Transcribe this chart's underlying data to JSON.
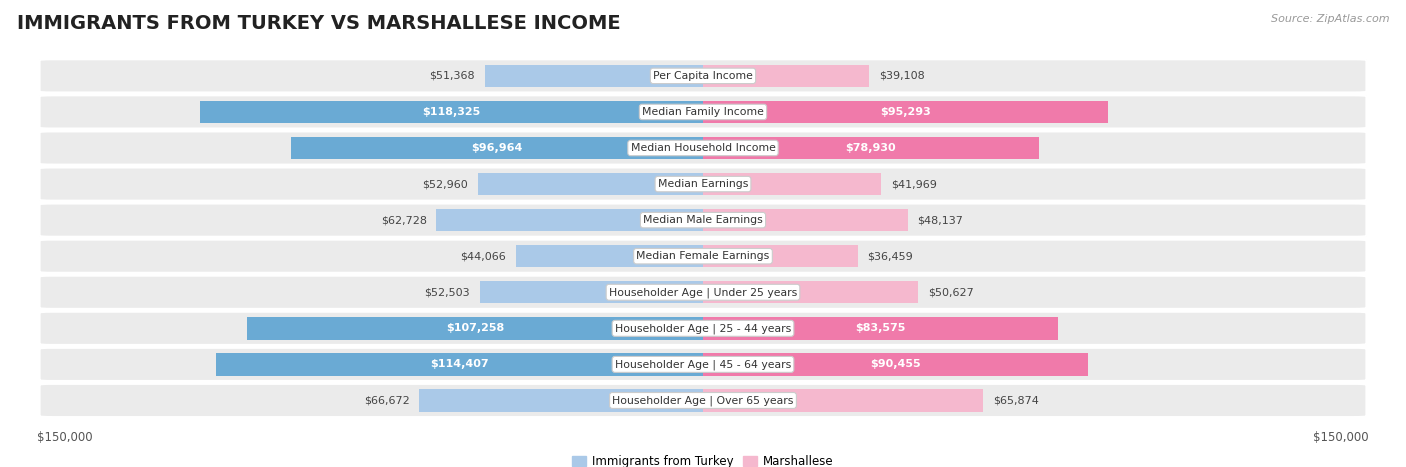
{
  "title": "IMMIGRANTS FROM TURKEY VS MARSHALLESE INCOME",
  "source": "Source: ZipAtlas.com",
  "categories": [
    "Per Capita Income",
    "Median Family Income",
    "Median Household Income",
    "Median Earnings",
    "Median Male Earnings",
    "Median Female Earnings",
    "Householder Age | Under 25 years",
    "Householder Age | 25 - 44 years",
    "Householder Age | 45 - 64 years",
    "Householder Age | Over 65 years"
  ],
  "turkey_values": [
    51368,
    118325,
    96964,
    52960,
    62728,
    44066,
    52503,
    107258,
    114407,
    66672
  ],
  "marshallese_values": [
    39108,
    95293,
    78930,
    41969,
    48137,
    36459,
    50627,
    83575,
    90455,
    65874
  ],
  "turkey_color_light": "#aac9e8",
  "turkey_color_dark": "#6aaad4",
  "marshallese_color_light": "#f5b8ce",
  "marshallese_color_dark": "#f07aaa",
  "max_value": 150000,
  "background_color": "#ffffff",
  "row_bg_color": "#ebebeb",
  "title_fontsize": 14,
  "bar_height": 0.62,
  "figsize": [
    14.06,
    4.67
  ],
  "dpi": 100,
  "inside_label_threshold": 75000,
  "legend_label_turkey": "Immigrants from Turkey",
  "legend_label_marshallese": "Marshallese"
}
